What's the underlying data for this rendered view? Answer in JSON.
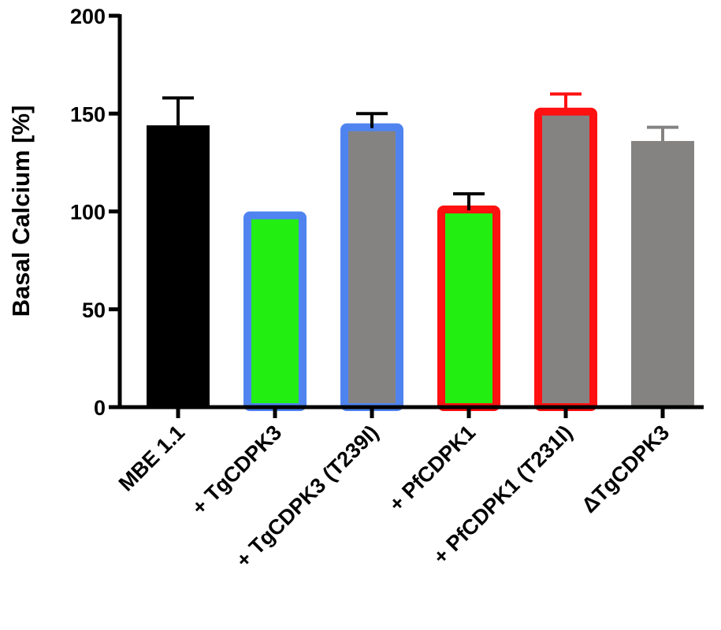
{
  "chart_data": {
    "type": "bar",
    "title": "",
    "xlabel": "",
    "ylabel": "Basal Calcium [%]",
    "ylim": [
      0,
      200
    ],
    "yticks": [
      0,
      50,
      100,
      150,
      200
    ],
    "grid": false,
    "legend": "none",
    "categories": [
      "MBE 1.1",
      "+ TgCDPK3",
      "+ TgCDPK3 (T239I)",
      "+ PfCDPK1",
      "+ PfCDPK1 (T231I)",
      "ΔTgCDPK3"
    ],
    "values": [
      144,
      100,
      145,
      103,
      153,
      136
    ],
    "error_upper": [
      158,
      null,
      150,
      109,
      160,
      143
    ],
    "fill_colors": [
      "#000000",
      "#22ee11",
      "#858382",
      "#22ee11",
      "#858382",
      "#858382"
    ],
    "border_colors": [
      null,
      "#4f84f0",
      "#4f84f0",
      "#ff1111",
      "#ff1111",
      null
    ],
    "errorbar_colors": [
      "#000000",
      "#000000",
      "#000000",
      "#000000",
      "#ff1111",
      "#858382"
    ]
  }
}
